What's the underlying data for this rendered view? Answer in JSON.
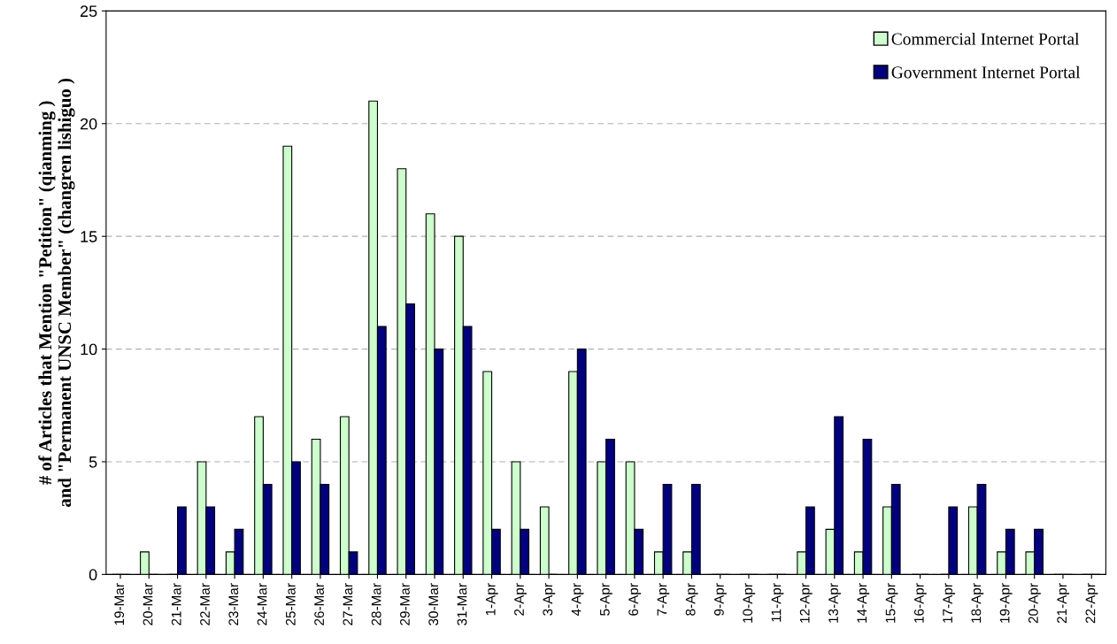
{
  "chart_data": {
    "type": "bar",
    "ylabel": "# of Articles that Mention \"Petition\" (qianming )\nand \"Permanent UNSC Member\" (changren lishiguo )",
    "categories": [
      "19-Mar",
      "20-Mar",
      "21-Mar",
      "22-Mar",
      "23-Mar",
      "24-Mar",
      "25-Mar",
      "26-Mar",
      "27-Mar",
      "28-Mar",
      "29-Mar",
      "30-Mar",
      "31-Mar",
      "1-Apr",
      "2-Apr",
      "3-Apr",
      "4-Apr",
      "5-Apr",
      "6-Apr",
      "7-Apr",
      "8-Apr",
      "9-Apr",
      "10-Apr",
      "11-Apr",
      "12-Apr",
      "13-Apr",
      "14-Apr",
      "15-Apr",
      "16-Apr",
      "17-Apr",
      "18-Apr",
      "19-Apr",
      "20-Apr",
      "21-Apr",
      "22-Apr"
    ],
    "series": [
      {
        "name": "Commercial Internet Portal",
        "color": "#ccffcc",
        "values": [
          0,
          1,
          0,
          5,
          1,
          7,
          19,
          6,
          7,
          21,
          18,
          16,
          15,
          9,
          5,
          3,
          9,
          5,
          5,
          1,
          1,
          0,
          0,
          0,
          1,
          2,
          1,
          3,
          0,
          0,
          3,
          1,
          1,
          0,
          0
        ]
      },
      {
        "name": "Government Internet Portal",
        "color": "#000080",
        "values": [
          0,
          0,
          3,
          3,
          2,
          4,
          5,
          4,
          1,
          11,
          12,
          10,
          11,
          2,
          2,
          0,
          10,
          6,
          2,
          4,
          4,
          0,
          0,
          0,
          3,
          7,
          6,
          4,
          0,
          3,
          4,
          2,
          2,
          0,
          0
        ]
      }
    ],
    "ylim": [
      0,
      25
    ],
    "yticks": [
      0,
      5,
      10,
      15,
      20,
      25
    ],
    "grid": "y",
    "legend": "top right"
  }
}
